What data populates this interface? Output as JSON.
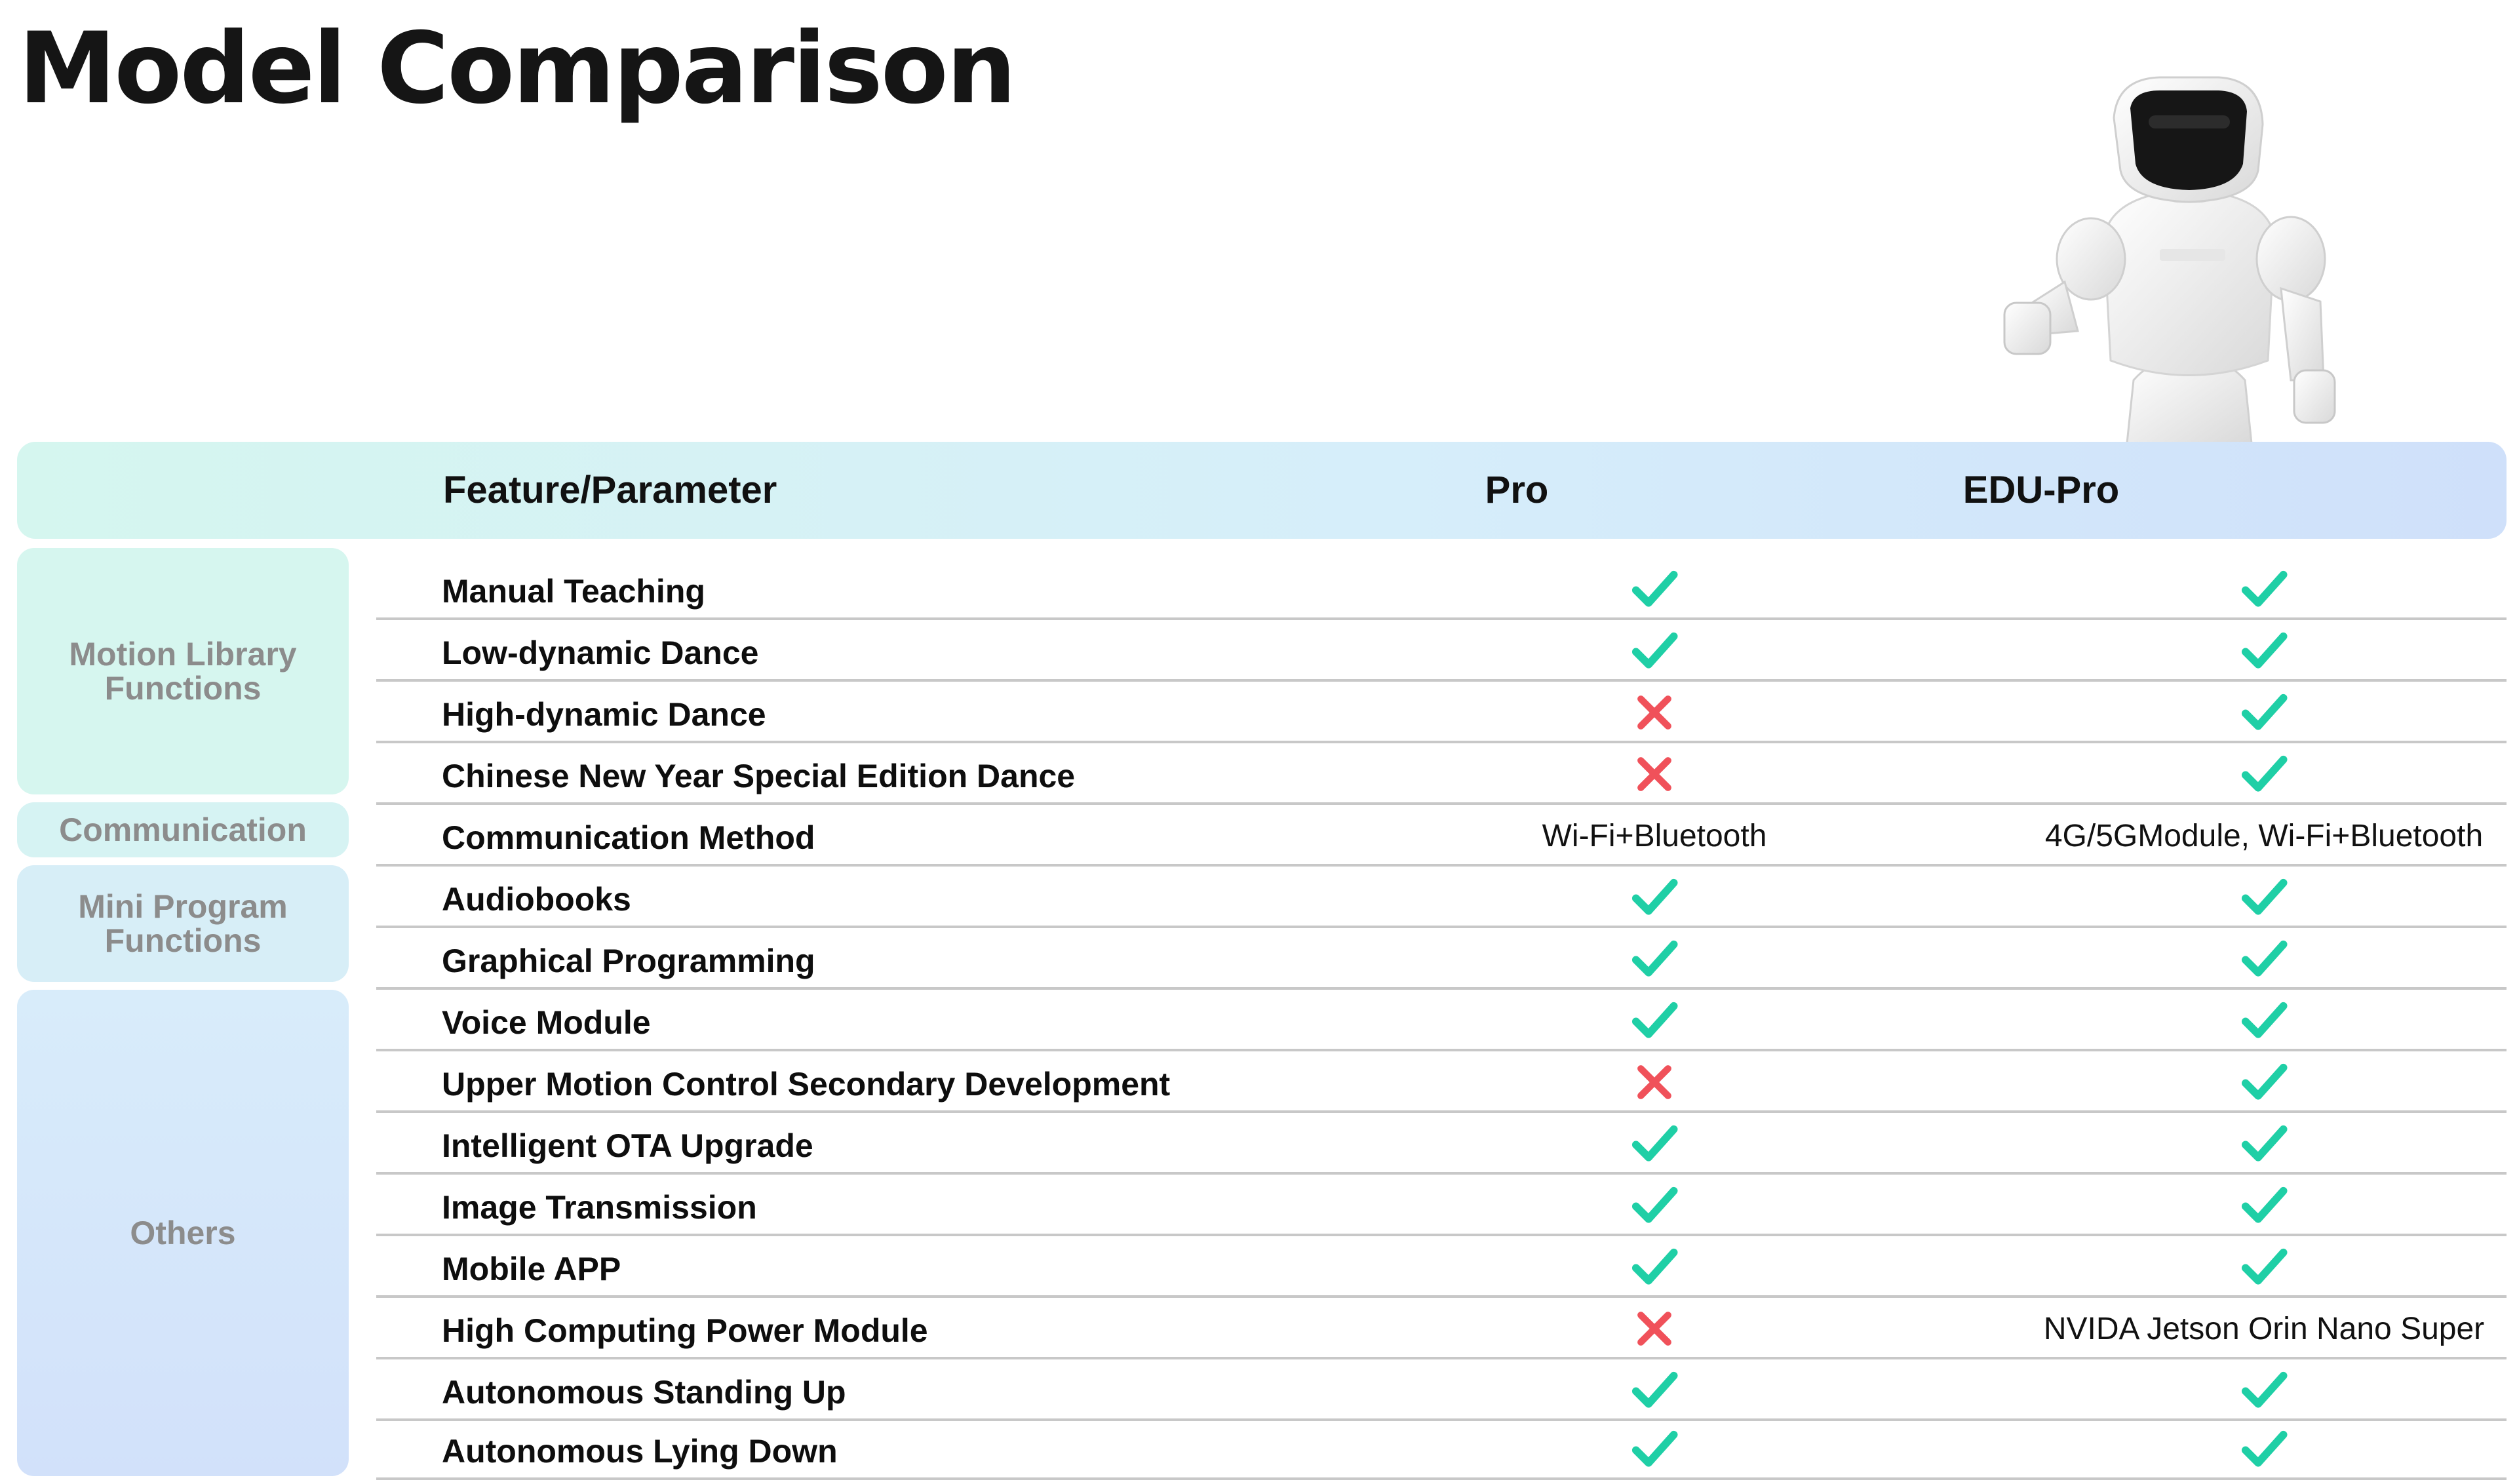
{
  "page": {
    "title": "Model Comparison"
  },
  "colors": {
    "check": "#1fcfa6",
    "cross": "#f0515a"
  },
  "icons": {
    "robot": "humanoid-robot-icon",
    "check": "check-icon",
    "cross": "cross-icon"
  },
  "table": {
    "headers": [
      "Feature/Parameter",
      "Pro",
      "EDU-Pro"
    ],
    "categories": [
      {
        "label": "Motion Library Functions"
      },
      {
        "label": "Communication"
      },
      {
        "label": "Mini Program Functions"
      },
      {
        "label": "Others"
      }
    ],
    "rows": [
      {
        "feature": "Manual Teaching",
        "pro": "check",
        "edu": "check"
      },
      {
        "feature": "Low-dynamic Dance",
        "pro": "check",
        "edu": "check"
      },
      {
        "feature": "High-dynamic Dance",
        "pro": "cross",
        "edu": "check"
      },
      {
        "feature": "Chinese New Year Special Edition Dance",
        "pro": "cross",
        "edu": "check"
      },
      {
        "feature": "Communication Method",
        "pro": "Wi-Fi+Bluetooth",
        "edu": "4G/5GModule, Wi-Fi+Bluetooth"
      },
      {
        "feature": "Audiobooks",
        "pro": "check",
        "edu": "check"
      },
      {
        "feature": "Graphical Programming",
        "pro": "check",
        "edu": "check"
      },
      {
        "feature": "Voice Module",
        "pro": "check",
        "edu": "check"
      },
      {
        "feature": "Upper Motion Control Secondary Development",
        "pro": "cross",
        "edu": "check"
      },
      {
        "feature": "Intelligent OTA Upgrade",
        "pro": "check",
        "edu": "check"
      },
      {
        "feature": "Image Transmission",
        "pro": "check",
        "edu": "check"
      },
      {
        "feature": "Mobile APP",
        "pro": "check",
        "edu": "check"
      },
      {
        "feature": "High Computing Power Module",
        "pro": "cross",
        "edu": "NVIDA Jetson Orin Nano Super"
      },
      {
        "feature": "Autonomous Standing Up",
        "pro": "check",
        "edu": "check"
      },
      {
        "feature": "Autonomous Lying Down",
        "pro": "check",
        "edu": "check"
      }
    ]
  }
}
